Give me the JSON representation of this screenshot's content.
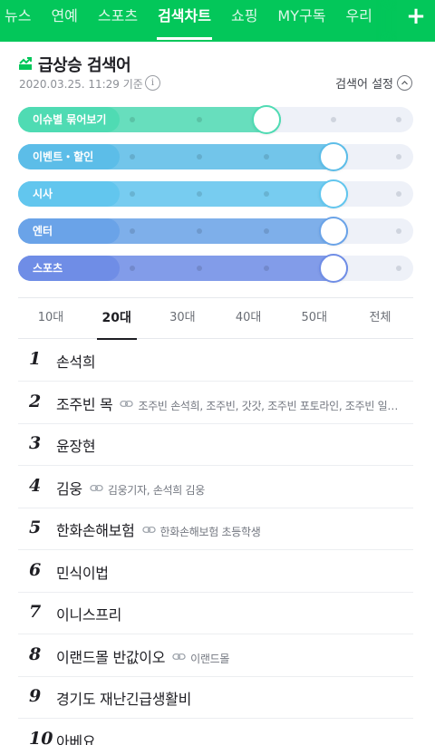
{
  "nav": {
    "tabs": [
      "뉴스",
      "연예",
      "스포츠",
      "검색차트",
      "쇼핑",
      "MY구독",
      "우리"
    ],
    "active": "검색차트",
    "plus_label": "+"
  },
  "header": {
    "title": "급상승 검색어",
    "timestamp": "2020.03.25. 11:29 기준",
    "info_label": "i",
    "settings_label": "검색어 설정"
  },
  "sliders": [
    {
      "label": "이슈별 묶어보기",
      "color": "#4fdbb3",
      "level": 2
    },
    {
      "label": "이벤트・할인",
      "color": "#5cbde8",
      "level": 3
    },
    {
      "label": "시사",
      "color": "#62c6ee",
      "level": 3
    },
    {
      "label": "엔터",
      "color": "#6aa3e8",
      "level": 3
    },
    {
      "label": "스포츠",
      "color": "#6f8de6",
      "level": 3
    }
  ],
  "age_tabs": [
    "10대",
    "20대",
    "30대",
    "40대",
    "50대",
    "전체"
  ],
  "age_active": "20대",
  "keywords": [
    {
      "rank": "1",
      "keyword": "손석희",
      "related": ""
    },
    {
      "rank": "2",
      "keyword": "조주빈 목",
      "related": "조주빈 손석희, 조주빈, 갓갓, 조주빈 포토라인, 조주빈 일…"
    },
    {
      "rank": "3",
      "keyword": "윤장현",
      "related": ""
    },
    {
      "rank": "4",
      "keyword": "김웅",
      "related": "김웅기자, 손석희 김웅"
    },
    {
      "rank": "5",
      "keyword": "한화손해보험",
      "related": "한화손해보험 초등학생"
    },
    {
      "rank": "6",
      "keyword": "민식이법",
      "related": ""
    },
    {
      "rank": "7",
      "keyword": "이니스프리",
      "related": ""
    },
    {
      "rank": "8",
      "keyword": "이랜드몰 반값이오",
      "related": "이랜드몰"
    },
    {
      "rank": "9",
      "keyword": "경기도 재난긴급생활비",
      "related": ""
    },
    {
      "rank": "10",
      "keyword": "아베요",
      "related": ""
    }
  ]
}
